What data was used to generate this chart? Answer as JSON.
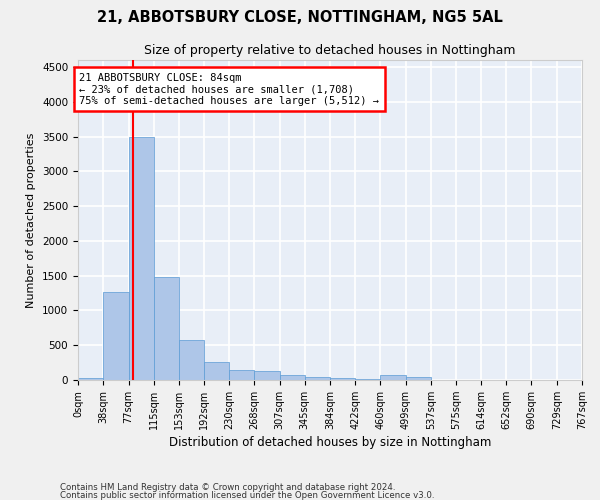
{
  "title": "21, ABBOTSBURY CLOSE, NOTTINGHAM, NG5 5AL",
  "subtitle": "Size of property relative to detached houses in Nottingham",
  "xlabel": "Distribution of detached houses by size in Nottingham",
  "ylabel": "Number of detached properties",
  "footer_line1": "Contains HM Land Registry data © Crown copyright and database right 2024.",
  "footer_line2": "Contains public sector information licensed under the Open Government Licence v3.0.",
  "bin_edges": [
    0,
    38,
    77,
    115,
    153,
    192,
    230,
    268,
    307,
    345,
    384,
    422,
    460,
    499,
    537,
    575,
    614,
    652,
    690,
    729,
    767
  ],
  "bar_heights": [
    30,
    1270,
    3500,
    1480,
    570,
    260,
    140,
    130,
    75,
    50,
    35,
    20,
    75,
    40,
    0,
    0,
    0,
    0,
    0,
    0
  ],
  "bar_color": "#aec6e8",
  "bar_edge_color": "#5b9bd5",
  "red_line_x": 84,
  "annotation_line1": "21 ABBOTSBURY CLOSE: 84sqm",
  "annotation_line2": "← 23% of detached houses are smaller (1,708)",
  "annotation_line3": "75% of semi-detached houses are larger (5,512) →",
  "ylim": [
    0,
    4600
  ],
  "yticks": [
    0,
    500,
    1000,
    1500,
    2000,
    2500,
    3000,
    3500,
    4000,
    4500
  ],
  "background_color": "#e8eef7",
  "grid_color": "#ffffff",
  "fig_bg_color": "#f0f0f0",
  "tick_label_size": 7.0,
  "title_fontsize": 10.5,
  "subtitle_fontsize": 9.0,
  "ylabel_fontsize": 8.0,
  "xlabel_fontsize": 8.5
}
